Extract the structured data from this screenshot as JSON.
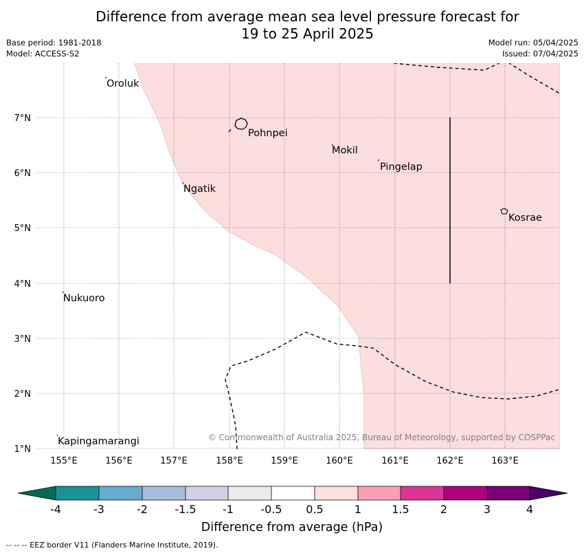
{
  "header": {
    "title_line1": "Difference from average mean sea level pressure forecast for",
    "title_line2": "19 to 25 April 2025",
    "base_period": "Base period: 1981-2018",
    "model": "Model: ACCESS-S2",
    "model_run": "Model run: 05/04/2025",
    "issued": "Issued: 07/04/2025"
  },
  "map": {
    "lon_ticks": [
      "155°E",
      "156°E",
      "157°E",
      "158°E",
      "159°E",
      "160°E",
      "161°E",
      "162°E",
      "163°E"
    ],
    "lat_ticks": [
      "7°N",
      "6°N",
      "5°N",
      "4°N",
      "3°N",
      "2°N",
      "1°N"
    ],
    "places": {
      "oroluk": "Oroluk",
      "pohnpei": "Pohnpei",
      "mokil": "Mokil",
      "pingelap": "Pingelap",
      "ngatik": "Ngatik",
      "kosrae": "Kosrae",
      "nukuoro": "Nukuoro",
      "kapingamarangi": "Kapingamarangi"
    },
    "shaded_category": "0.5 to 1",
    "shade_color": "#fcdedd",
    "credit": "© Commonwealth of Australia 2025, Bureau of Meteorology, supported by COSPPac"
  },
  "colorbar": {
    "label": "Difference from average (hPa)",
    "ticks": [
      "-4",
      "-3",
      "-2",
      "-1.5",
      "-1",
      "-0.5",
      "0.5",
      "1",
      "1.5",
      "2",
      "3",
      "4"
    ],
    "colors": [
      "#1a9196",
      "#67abd0",
      "#a6bddb",
      "#d0d1e6",
      "#ebebeb",
      "#ffffff",
      "#fde0dd",
      "#fa9fb5",
      "#dd3497",
      "#ae017e",
      "#7a0177"
    ],
    "under_color": "#016c59",
    "over_color": "#49006a"
  },
  "footnote": "-- -- -- EEZ border V11 (Flanders Marine Institute, 2019)."
}
